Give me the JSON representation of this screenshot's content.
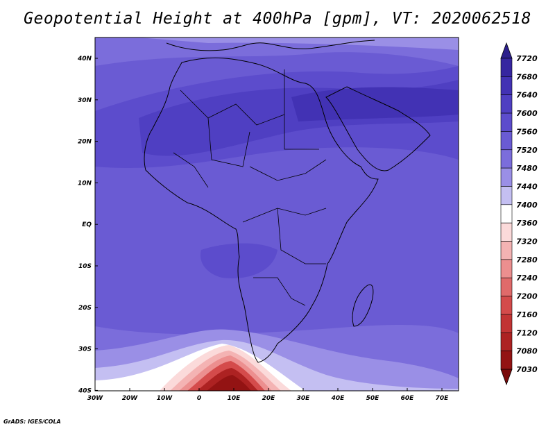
{
  "title": "Geopotential Height at 400hPa [gpm], VT: 2020062518",
  "credit": "GrADS: IGES/COLA",
  "lat_labels": [
    "40N",
    "30N",
    "20N",
    "10N",
    "EQ",
    "10S",
    "20S",
    "30S",
    "40S"
  ],
  "lon_labels": [
    "30W",
    "20W",
    "10W",
    "0",
    "10E",
    "20E",
    "30E",
    "40E",
    "50E",
    "60E",
    "70E"
  ],
  "colorbar": {
    "levels": [
      "7720",
      "7680",
      "7640",
      "7600",
      "7560",
      "7520",
      "7480",
      "7440",
      "7400",
      "7360",
      "7320",
      "7280",
      "7240",
      "7200",
      "7160",
      "7120",
      "7080",
      "7030"
    ],
    "colors": [
      "#2c1f8c",
      "#3626a0",
      "#4232b4",
      "#4f3fc2",
      "#5c4ccc",
      "#6a5bd3",
      "#7b6ddb",
      "#9a8fe6",
      "#c4bff2",
      "#ffffff",
      "#fbdada",
      "#f4b3b3",
      "#ec8f8f",
      "#e06a6a",
      "#d44b4b",
      "#c23434",
      "#ad2222",
      "#931313",
      "#7a0a0a"
    ]
  },
  "field_colors": {
    "ocean_base": "#6a5bd3",
    "high": "#4232b4",
    "mid": "#5c4ccc",
    "low": "#9a8fe6",
    "warm_core": "#931313",
    "border_line": "#000000"
  }
}
